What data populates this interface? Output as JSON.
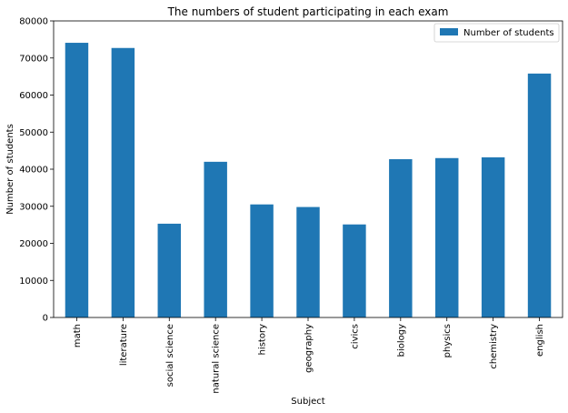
{
  "chart_data": {
    "type": "bar",
    "title": "The numbers of student participating in each exam",
    "xlabel": "Subject",
    "ylabel": "Number of students",
    "categories": [
      "math",
      "literature",
      "social science",
      "natural science",
      "history",
      "geography",
      "civics",
      "biology",
      "physics",
      "chemistry",
      "english"
    ],
    "series": [
      {
        "name": "Number of students",
        "values": [
          74100,
          72700,
          25300,
          42000,
          30500,
          29800,
          25100,
          42700,
          43000,
          43200,
          65800
        ]
      }
    ],
    "ylim": [
      0,
      80000
    ],
    "yticks": [
      "0",
      "10000",
      "20000",
      "30000",
      "40000",
      "50000",
      "60000",
      "70000",
      "80000"
    ],
    "grid": false,
    "legend_position": "top-right",
    "bar_color": "#1f77b4"
  }
}
